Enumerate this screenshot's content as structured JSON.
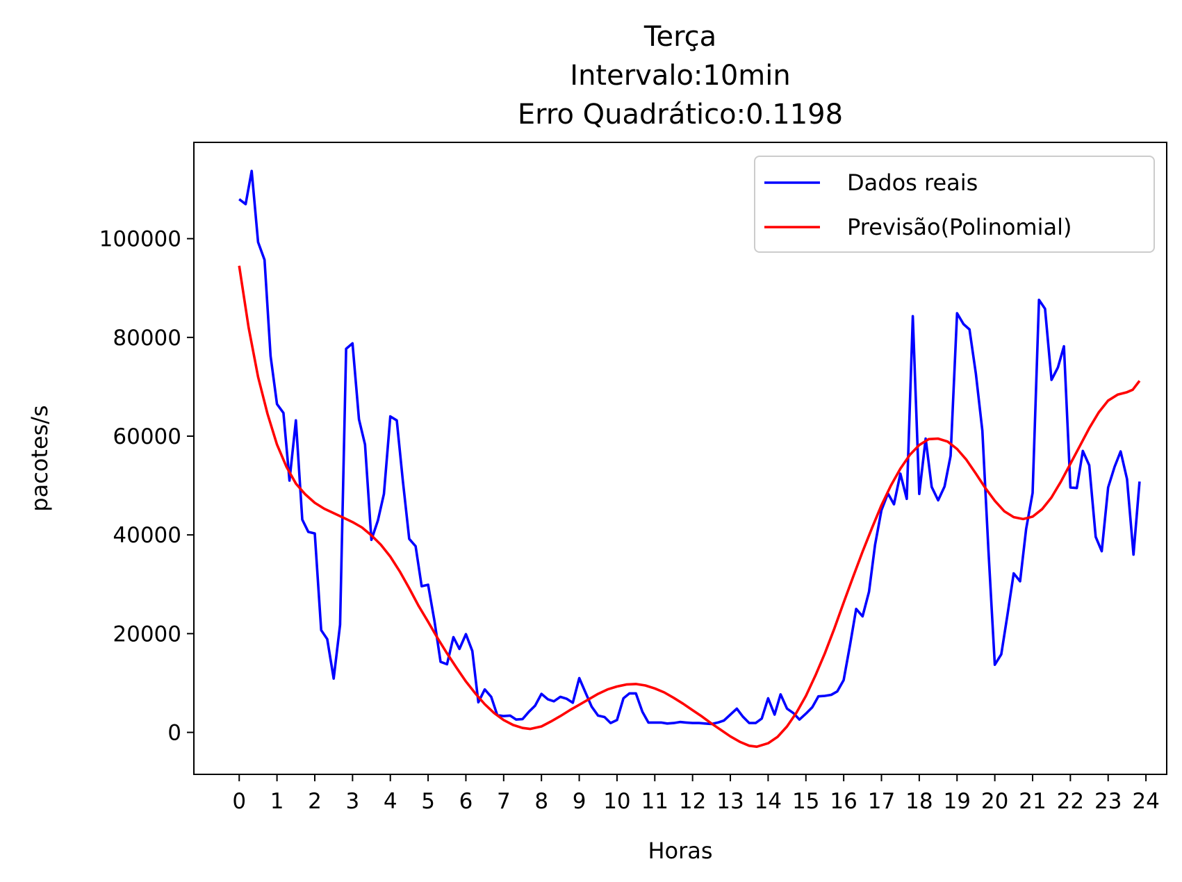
{
  "chart_data": {
    "type": "line",
    "title_lines": [
      "Terça",
      "Intervalo:10min",
      "Erro Quadrático:0.1198"
    ],
    "xlabel": "Horas",
    "ylabel": "pacotes/s",
    "xlim": [
      -1.2,
      24.55
    ],
    "ylim": [
      -8500,
      119500
    ],
    "xticks": [
      0,
      1,
      2,
      3,
      4,
      5,
      6,
      7,
      8,
      9,
      10,
      11,
      12,
      13,
      14,
      15,
      16,
      17,
      18,
      19,
      20,
      21,
      22,
      23,
      24
    ],
    "yticks": [
      0,
      20000,
      40000,
      60000,
      80000,
      100000
    ],
    "grid": false,
    "legend_position": "top-right",
    "series": [
      {
        "name": "Dados reais",
        "color": "#0000ff",
        "points": [
          [
            0,
            108000
          ],
          [
            0.17,
            107000
          ],
          [
            0.33,
            113700
          ],
          [
            0.5,
            99300
          ],
          [
            0.67,
            95700
          ],
          [
            0.83,
            76200
          ],
          [
            1.0,
            66500
          ],
          [
            1.17,
            64700
          ],
          [
            1.33,
            51000
          ],
          [
            1.5,
            63200
          ],
          [
            1.67,
            43100
          ],
          [
            1.83,
            40600
          ],
          [
            2.0,
            40300
          ],
          [
            2.17,
            20700
          ],
          [
            2.33,
            18900
          ],
          [
            2.5,
            10900
          ],
          [
            2.67,
            21800
          ],
          [
            2.83,
            77700
          ],
          [
            3.0,
            78800
          ],
          [
            3.17,
            63400
          ],
          [
            3.33,
            58300
          ],
          [
            3.5,
            39000
          ],
          [
            3.67,
            42900
          ],
          [
            3.83,
            48300
          ],
          [
            4.0,
            64000
          ],
          [
            4.17,
            63200
          ],
          [
            4.33,
            51000
          ],
          [
            4.5,
            39200
          ],
          [
            4.67,
            37700
          ],
          [
            4.83,
            29600
          ],
          [
            5.0,
            29900
          ],
          [
            5.17,
            22500
          ],
          [
            5.33,
            14300
          ],
          [
            5.5,
            13800
          ],
          [
            5.67,
            19300
          ],
          [
            5.83,
            16900
          ],
          [
            6.0,
            19900
          ],
          [
            6.17,
            16500
          ],
          [
            6.33,
            6100
          ],
          [
            6.5,
            8700
          ],
          [
            6.67,
            7200
          ],
          [
            6.83,
            3500
          ],
          [
            7.0,
            3300
          ],
          [
            7.17,
            3400
          ],
          [
            7.33,
            2600
          ],
          [
            7.5,
            2700
          ],
          [
            7.67,
            4200
          ],
          [
            7.83,
            5400
          ],
          [
            8.0,
            7800
          ],
          [
            8.17,
            6700
          ],
          [
            8.33,
            6300
          ],
          [
            8.5,
            7200
          ],
          [
            8.67,
            6800
          ],
          [
            8.83,
            6000
          ],
          [
            9.0,
            11000
          ],
          [
            9.17,
            8000
          ],
          [
            9.33,
            5200
          ],
          [
            9.5,
            3400
          ],
          [
            9.67,
            3100
          ],
          [
            9.83,
            1900
          ],
          [
            10.0,
            2500
          ],
          [
            10.17,
            6900
          ],
          [
            10.33,
            7900
          ],
          [
            10.5,
            7900
          ],
          [
            10.67,
            4200
          ],
          [
            10.83,
            2000
          ],
          [
            11.0,
            2000
          ],
          [
            11.17,
            2000
          ],
          [
            11.33,
            1800
          ],
          [
            11.5,
            1900
          ],
          [
            11.67,
            2100
          ],
          [
            11.83,
            2000
          ],
          [
            12.0,
            1900
          ],
          [
            12.17,
            1900
          ],
          [
            12.33,
            1800
          ],
          [
            12.5,
            1700
          ],
          [
            12.67,
            2000
          ],
          [
            12.83,
            2400
          ],
          [
            13.0,
            3600
          ],
          [
            13.17,
            4800
          ],
          [
            13.33,
            3200
          ],
          [
            13.5,
            1900
          ],
          [
            13.67,
            1900
          ],
          [
            13.83,
            2800
          ],
          [
            14.0,
            6900
          ],
          [
            14.17,
            3600
          ],
          [
            14.33,
            7700
          ],
          [
            14.5,
            4800
          ],
          [
            14.67,
            3900
          ],
          [
            14.83,
            2600
          ],
          [
            15.0,
            3800
          ],
          [
            15.17,
            5100
          ],
          [
            15.33,
            7300
          ],
          [
            15.5,
            7400
          ],
          [
            15.67,
            7600
          ],
          [
            15.83,
            8300
          ],
          [
            16.0,
            10600
          ],
          [
            16.17,
            17800
          ],
          [
            16.33,
            25000
          ],
          [
            16.5,
            23500
          ],
          [
            16.67,
            28500
          ],
          [
            16.83,
            38000
          ],
          [
            17.0,
            45000
          ],
          [
            17.17,
            48400
          ],
          [
            17.33,
            46200
          ],
          [
            17.5,
            52400
          ],
          [
            17.67,
            47300
          ],
          [
            17.83,
            84300
          ],
          [
            18.0,
            48300
          ],
          [
            18.17,
            59500
          ],
          [
            18.33,
            49700
          ],
          [
            18.5,
            47000
          ],
          [
            18.67,
            49800
          ],
          [
            18.83,
            56000
          ],
          [
            19.0,
            84900
          ],
          [
            19.17,
            82700
          ],
          [
            19.33,
            81600
          ],
          [
            19.5,
            72600
          ],
          [
            19.67,
            61100
          ],
          [
            19.83,
            37000
          ],
          [
            20.0,
            13700
          ],
          [
            20.17,
            15800
          ],
          [
            20.33,
            23600
          ],
          [
            20.5,
            32200
          ],
          [
            20.67,
            30600
          ],
          [
            20.83,
            41200
          ],
          [
            21.0,
            48500
          ],
          [
            21.17,
            87600
          ],
          [
            21.33,
            85800
          ],
          [
            21.5,
            71400
          ],
          [
            21.67,
            73900
          ],
          [
            21.83,
            78200
          ],
          [
            22.0,
            49600
          ],
          [
            22.17,
            49500
          ],
          [
            22.33,
            57000
          ],
          [
            22.5,
            54100
          ],
          [
            22.67,
            39600
          ],
          [
            22.83,
            36700
          ],
          [
            23.0,
            49600
          ],
          [
            23.17,
            53800
          ],
          [
            23.33,
            56900
          ],
          [
            23.5,
            51300
          ],
          [
            23.67,
            36000
          ],
          [
            23.83,
            50800
          ]
        ]
      },
      {
        "name": "Previsão(Polinomial)",
        "color": "#ff0000",
        "points": [
          [
            0,
            94500
          ],
          [
            0.25,
            82000
          ],
          [
            0.5,
            72000
          ],
          [
            0.75,
            64500
          ],
          [
            1.0,
            58300
          ],
          [
            1.25,
            53800
          ],
          [
            1.5,
            50400
          ],
          [
            1.75,
            48200
          ],
          [
            2.0,
            46500
          ],
          [
            2.25,
            45300
          ],
          [
            2.5,
            44400
          ],
          [
            2.75,
            43500
          ],
          [
            3.0,
            42600
          ],
          [
            3.25,
            41500
          ],
          [
            3.5,
            39900
          ],
          [
            3.75,
            38000
          ],
          [
            4.0,
            35600
          ],
          [
            4.25,
            32600
          ],
          [
            4.5,
            29200
          ],
          [
            4.75,
            25600
          ],
          [
            5.0,
            22400
          ],
          [
            5.25,
            19100
          ],
          [
            5.5,
            16000
          ],
          [
            5.75,
            13100
          ],
          [
            6.0,
            10300
          ],
          [
            6.25,
            7900
          ],
          [
            6.5,
            5700
          ],
          [
            6.75,
            3900
          ],
          [
            7.0,
            2500
          ],
          [
            7.25,
            1500
          ],
          [
            7.5,
            900
          ],
          [
            7.7,
            700
          ],
          [
            8.0,
            1200
          ],
          [
            8.25,
            2200
          ],
          [
            8.5,
            3300
          ],
          [
            8.75,
            4500
          ],
          [
            9.0,
            5600
          ],
          [
            9.25,
            6700
          ],
          [
            9.5,
            7800
          ],
          [
            9.75,
            8700
          ],
          [
            10.0,
            9300
          ],
          [
            10.25,
            9700
          ],
          [
            10.5,
            9800
          ],
          [
            10.75,
            9500
          ],
          [
            11.0,
            8900
          ],
          [
            11.25,
            8100
          ],
          [
            11.5,
            7000
          ],
          [
            11.75,
            5800
          ],
          [
            12.0,
            4500
          ],
          [
            12.25,
            3200
          ],
          [
            12.5,
            1800
          ],
          [
            12.75,
            500
          ],
          [
            13.0,
            -800
          ],
          [
            13.25,
            -1900
          ],
          [
            13.5,
            -2700
          ],
          [
            13.7,
            -2900
          ],
          [
            14.0,
            -2200
          ],
          [
            14.25,
            -900
          ],
          [
            14.5,
            1200
          ],
          [
            14.75,
            4000
          ],
          [
            15.0,
            7400
          ],
          [
            15.25,
            11500
          ],
          [
            15.5,
            16000
          ],
          [
            15.75,
            21000
          ],
          [
            16.0,
            26300
          ],
          [
            16.25,
            31500
          ],
          [
            16.5,
            36600
          ],
          [
            16.75,
            41400
          ],
          [
            17.0,
            46000
          ],
          [
            17.25,
            50000
          ],
          [
            17.5,
            53400
          ],
          [
            17.75,
            56200
          ],
          [
            18.0,
            58200
          ],
          [
            18.25,
            59400
          ],
          [
            18.5,
            59500
          ],
          [
            18.75,
            58900
          ],
          [
            19.0,
            57400
          ],
          [
            19.25,
            55200
          ],
          [
            19.5,
            52400
          ],
          [
            19.75,
            49500
          ],
          [
            20.0,
            46900
          ],
          [
            20.25,
            44800
          ],
          [
            20.5,
            43600
          ],
          [
            20.75,
            43200
          ],
          [
            21.0,
            43700
          ],
          [
            21.25,
            45200
          ],
          [
            21.5,
            47600
          ],
          [
            21.75,
            50800
          ],
          [
            22.0,
            54400
          ],
          [
            22.25,
            58000
          ],
          [
            22.5,
            61600
          ],
          [
            22.75,
            64800
          ],
          [
            23.0,
            67200
          ],
          [
            23.25,
            68400
          ],
          [
            23.5,
            68900
          ],
          [
            23.65,
            69400
          ],
          [
            23.83,
            71200
          ]
        ]
      }
    ]
  }
}
